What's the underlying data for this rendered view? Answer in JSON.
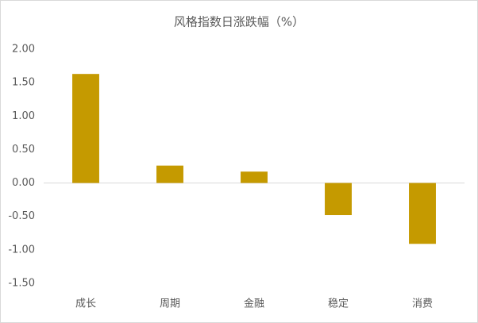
{
  "chart_data": {
    "type": "bar",
    "title": "风格指数日涨跌幅（%）",
    "categories": [
      "成长",
      "周期",
      "金融",
      "稳定",
      "消费"
    ],
    "values": [
      1.63,
      0.26,
      0.17,
      -0.48,
      -0.91
    ],
    "color": "#c59a00",
    "ylim": [
      -1.5,
      2.0
    ],
    "yticks": [
      {
        "value": -1.5,
        "label": "-1.50"
      },
      {
        "value": -1.0,
        "label": "-1.00"
      },
      {
        "value": -0.5,
        "label": "-0.50"
      },
      {
        "value": 0,
        "label": "0.00"
      },
      {
        "value": 0.5,
        "label": "0.50"
      },
      {
        "value": 1.0,
        "label": "1.00"
      },
      {
        "value": 1.5,
        "label": "1.50"
      },
      {
        "value": 2.0,
        "label": "2.00"
      }
    ],
    "grid": false
  }
}
